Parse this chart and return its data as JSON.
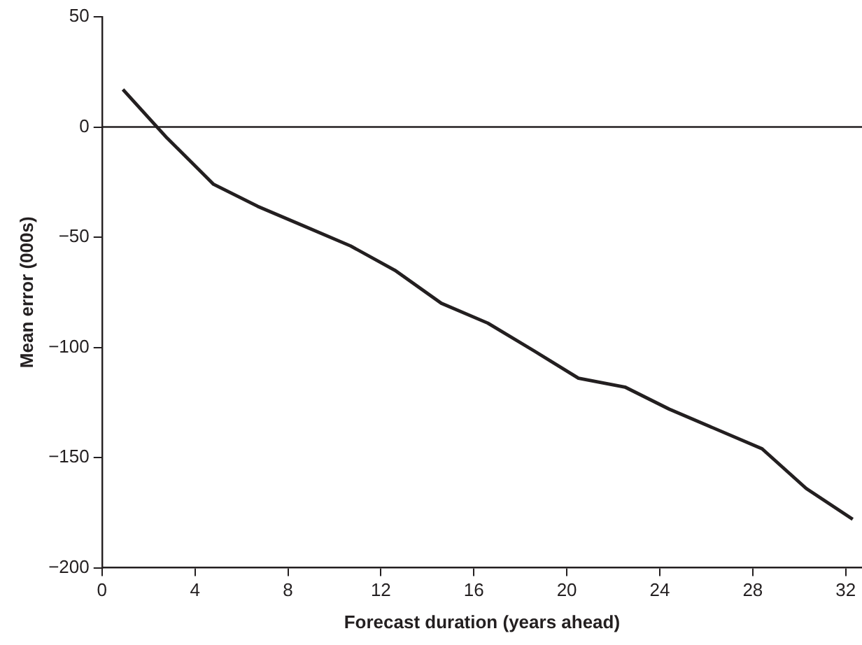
{
  "chart_data": {
    "type": "line",
    "xlabel": "Forecast duration (years ahead)",
    "ylabel": "Mean error (000s)",
    "x": [
      0.9,
      2.8,
      4.8,
      6.7,
      8.7,
      10.7,
      12.6,
      14.6,
      16.6,
      18.5,
      20.5,
      22.5,
      24.4,
      26.4,
      28.4,
      30.3,
      32.3
    ],
    "series": [
      {
        "color": "#231f20",
        "values": [
          17,
          -5,
          -26,
          -36,
          -45,
          -54,
          -65,
          -80,
          -89,
          -101,
          -114,
          -118,
          -128,
          -137,
          -146,
          -164,
          -178
        ]
      }
    ],
    "xlim": [
      0,
      32.7
    ],
    "xticks": [
      0,
      4,
      8,
      12,
      16,
      20,
      24,
      28,
      32
    ],
    "ylim": [
      -200,
      50
    ],
    "yticks": [
      -200,
      -150,
      -100,
      -50,
      0,
      50
    ],
    "ref_lines": [
      {
        "axis": "y",
        "value": 0,
        "color": "#231f20"
      }
    ],
    "grid": false,
    "legend": false,
    "marker": "none",
    "line_style": "solid"
  }
}
